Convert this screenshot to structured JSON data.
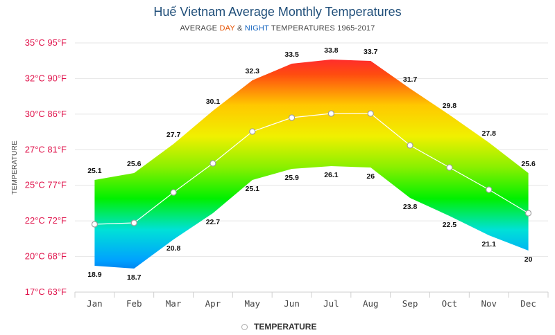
{
  "title": "Huế Vietnam Average Monthly Temperatures",
  "subtitle": {
    "prefix": "AVERAGE ",
    "day": "DAY",
    "mid": " & ",
    "night": "NIGHT",
    "suffix": " TEMPERATURES 1965-2017"
  },
  "colors": {
    "day_word": "#e65100",
    "night_word": "#1565c0",
    "y_ticks": "#e0144c",
    "gradient_stops": [
      "#ff0a4b",
      "#ff4b10",
      "#ffc800",
      "#f0f000",
      "#88f000",
      "#00f000",
      "#00e1d7",
      "#00a0ff",
      "#0032c8"
    ]
  },
  "legend": {
    "label": "TEMPERATURE",
    "marker": "hollow-circle-icon"
  },
  "chart_data": {
    "type": "area",
    "title": "Huế Vietnam Average Monthly Temperatures",
    "ylabel": "TEMPERATURE",
    "categories": [
      "Jan",
      "Feb",
      "Mar",
      "Apr",
      "May",
      "Jun",
      "Jul",
      "Aug",
      "Sep",
      "Oct",
      "Nov",
      "Dec"
    ],
    "y_tick_labels": [
      "17°C 63°F",
      "20°C 68°F",
      "22°C 72°F",
      "25°C 77°F",
      "27°C 81°F",
      "30°C 86°F",
      "32°C 90°F",
      "35°C 95°F"
    ],
    "ylim": [
      17,
      35
    ],
    "grid": true,
    "legend_position": "bottom",
    "series": [
      {
        "role": "day",
        "values": [
          25.1,
          25.6,
          27.7,
          30.1,
          32.3,
          33.5,
          33.8,
          33.7,
          31.7,
          29.8,
          27.8,
          25.6
        ]
      },
      {
        "role": "night",
        "values": [
          18.9,
          18.7,
          20.8,
          22.7,
          25.1,
          25.9,
          26.1,
          26,
          23.8,
          22.5,
          21.1,
          20
        ]
      },
      {
        "name": "TEMPERATURE",
        "values": [
          21.9,
          22,
          24.2,
          26.3,
          28.6,
          29.6,
          29.9,
          29.9,
          27.6,
          26,
          24.4,
          22.7
        ]
      }
    ]
  }
}
